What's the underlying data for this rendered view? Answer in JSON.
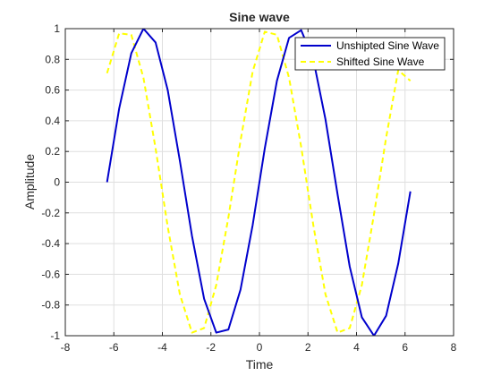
{
  "chart_data": {
    "type": "line",
    "title": "Sine wave",
    "xlabel": "Time",
    "ylabel": "Amplitude",
    "xlim": [
      -8,
      8
    ],
    "ylim": [
      -1,
      1
    ],
    "xticks": [
      -8,
      -6,
      -4,
      -2,
      0,
      2,
      4,
      6,
      8
    ],
    "yticks": [
      -1,
      -0.8,
      -0.6,
      -0.4,
      -0.2,
      0,
      0.2,
      0.4,
      0.6,
      0.8,
      1
    ],
    "xtick_labels": [
      "-8",
      "-6",
      "-4",
      "-2",
      "0",
      "2",
      "4",
      "6",
      "8"
    ],
    "ytick_labels": [
      "-1",
      "-0.8",
      "-0.6",
      "-0.4",
      "-0.2",
      "0",
      "0.2",
      "0.4",
      "0.6",
      "0.8",
      "1"
    ],
    "grid": true,
    "legend_position": "top-right",
    "x": [
      -6.28,
      -5.78,
      -5.28,
      -4.78,
      -4.28,
      -3.78,
      -3.28,
      -2.78,
      -2.28,
      -1.78,
      -1.28,
      -0.78,
      -0.28,
      0.22,
      0.72,
      1.22,
      1.72,
      2.22,
      2.72,
      3.22,
      3.72,
      4.22,
      4.72,
      5.22,
      5.72,
      6.22
    ],
    "series": [
      {
        "name": "Unshipted Sine Wave",
        "color": "#0000cc",
        "line_style": "solid",
        "values": [
          0.0,
          0.48,
          0.84,
          1.0,
          0.91,
          0.6,
          0.14,
          -0.35,
          -0.76,
          -0.98,
          -0.96,
          -0.7,
          -0.28,
          0.22,
          0.66,
          0.94,
          0.99,
          0.8,
          0.41,
          -0.08,
          -0.55,
          -0.88,
          -1.0,
          -0.87,
          -0.53,
          -0.06
        ]
      },
      {
        "name": "Shifted Sine Wave",
        "color": "#ffff00",
        "line_style": "dashed",
        "values": [
          0.71,
          0.97,
          0.96,
          0.68,
          0.22,
          -0.29,
          -0.73,
          -0.98,
          -0.95,
          -0.67,
          -0.23,
          0.27,
          0.72,
          0.98,
          0.96,
          0.68,
          0.23,
          -0.28,
          -0.73,
          -0.98,
          -0.95,
          -0.67,
          -0.21,
          0.29,
          0.73,
          0.66
        ]
      }
    ]
  }
}
